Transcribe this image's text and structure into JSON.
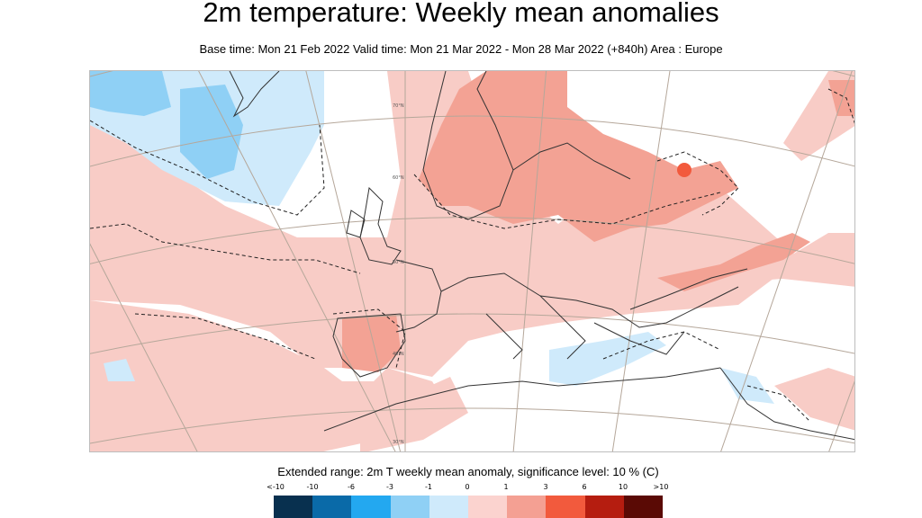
{
  "header": {
    "title": "2m temperature: Weekly mean anomalies",
    "subtitle": "Base time: Mon 21 Feb 2022 Valid time: Mon 21 Mar 2022 - Mon 28 Mar 2022 (+840h) Area : Europe"
  },
  "map": {
    "grid_labels": [
      "70°N",
      "60°N",
      "50°N",
      "40°N",
      "30°N"
    ]
  },
  "colorbar": {
    "title": "Extended range: 2m T weekly mean anomaly, significance level: 10 % (C)",
    "ticks": [
      "<-10",
      "-10",
      "-6",
      "-3",
      "-1",
      "0",
      "1",
      "3",
      "6",
      "10",
      ">10"
    ],
    "colors": [
      "#08304f",
      "#0a6aa8",
      "#23a8f0",
      "#8fd0f5",
      "#cfeafb",
      "#ffffff",
      "#fbd3cf",
      "#f4a093",
      "#f25a3d",
      "#b51d10",
      "#5a0a05"
    ]
  }
}
